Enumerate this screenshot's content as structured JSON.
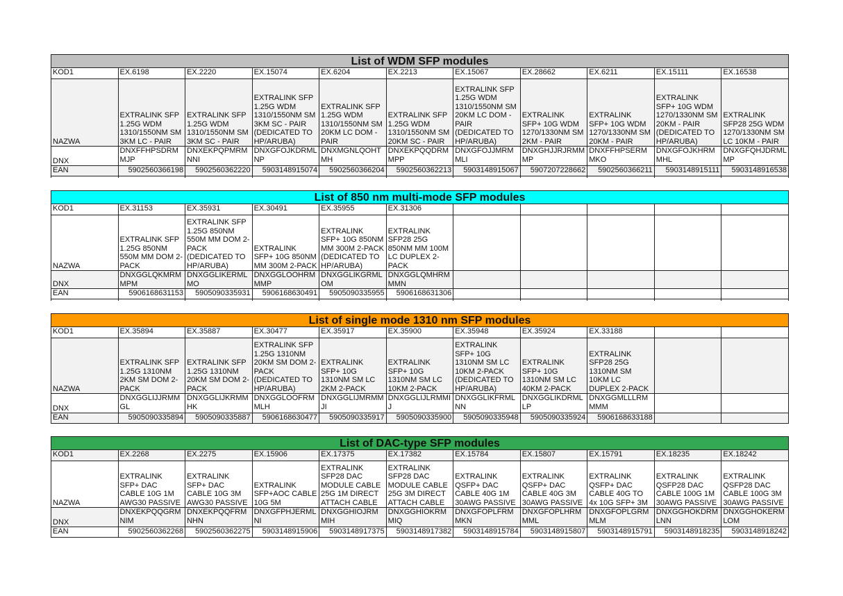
{
  "row_labels": {
    "kod": "KOD1",
    "nazwa": "NAZWA",
    "dnx": "DNX",
    "ean": "EAN"
  },
  "tables": [
    {
      "title": "List of WDM SFP modules",
      "color": "#c0c0c0",
      "kod": [
        "EX.6198",
        "EX.2220",
        "EX.15074",
        "EX.6204",
        "EX.2213",
        "EX.15067",
        "EX.28662",
        "EX.6211",
        "EX.15111",
        "EX.16538"
      ],
      "nazwa": [
        "EXTRALINK SFP 1.25G WDM 1310/1550NM SM 3KM LC - PAIR",
        "EXTRALINK SFP 1.25G WDM 1310/1550NM SM 3KM SC - PAIR",
        "EXTRALINK SFP 1.25G WDM 1310/1550NM SM 3KM SC - PAIR (DEDICATED TO HP/ARUBA)",
        "EXTRALINK SFP 1.25G WDM 1310/1550NM SM 20KM LC DOM - PAIR",
        "EXTRALINK SFP 1.25G WDM 1310/1550NM SM 20KM SC - PAIR",
        "EXTRALINK SFP 1.25G WDM 1310/1550NM SM 20KM LC DOM - PAIR (DEDICATED TO HP/ARUBA)",
        "EXTRALINK SFP+ 10G WDM 1270/1330NM SM 2KM - PAIR",
        "EXTRALINK SFP+ 10G WDM 1270/1330NM SM 20KM - PAIR",
        "EXTRALINK SFP+ 10G WDM 1270/1330NM SM 20KM - PAIR (DEDICATED TO HP/ARUBA)",
        "EXTRALINK SFP28 25G WDM 1270/1330NM SM LC 10KM - PAIR"
      ],
      "dnx": [
        "DNXFFHPSDRMMJP",
        "DNXEKPQPMRMNNI",
        "DNXGFOJKDRMLNP",
        "DNXMGNLQOHTMH",
        "DNXEKPQQDRMMPP",
        "DNXGFOJJMRMMLI",
        "DNXGHJJRJRMMMP",
        "DNXFFHPSERMMKO",
        "DNXGFOJKHRMMHL",
        "DNXGFQHJDRMLMP"
      ],
      "ean": [
        "5902560366198",
        "5902560362220",
        "5903148915074",
        "5902560366204",
        "5902560362213",
        "5903148915067",
        "5907207228662",
        "5902560366211",
        "5903148915111",
        "5903148916538"
      ]
    },
    {
      "title": "List of 850 nm multi-mode SFP modules",
      "color": "#00ffff",
      "kod": [
        "EX.31153",
        "EX.35931",
        "EX.30491",
        "EX.35955",
        "EX.31306",
        "",
        "",
        "",
        "",
        ""
      ],
      "nazwa": [
        "EXTRALINK SFP 1.25G 850NM 550M MM DOM 2-PACK",
        "EXTRALINK SFP 1.25G 850NM 550M MM DOM 2-PACK (DEDICATED TO HP/ARUBA)",
        "EXTRALINK SFP+ 10G 850NM MM 300M 2-PACK",
        "EXTRALINK SFP+ 10G 850NM MM 300M 2-PACK (DEDICATED TO HP/ARUBA)",
        "EXTRALINK SFP28 25G 850NM MM 100M LC DUPLEX 2-PACK",
        "",
        "",
        "",
        "",
        ""
      ],
      "dnx": [
        "DNXGGLQKMRMMPM",
        "DNXGGLIKERMLMO",
        "DNXGGLOOHRMMMP",
        "DNXGGLIKGRMLOM",
        "DNXGGLQMHRMMMN",
        "",
        "",
        "",
        "",
        ""
      ],
      "ean": [
        "5906168631153",
        "5905090335931",
        "5906168630491",
        "5905090335955",
        "5906168631306",
        "",
        "",
        "",
        "",
        ""
      ]
    },
    {
      "title": "List of single mode 1310 nm SFP modules",
      "color": "#ff9900",
      "kod": [
        "EX.35894",
        "EX.35887",
        "EX.30477",
        "EX.35917",
        "EX.35900",
        "EX.35948",
        "EX.35924",
        "EX.33188",
        "",
        ""
      ],
      "nazwa": [
        "EXTRALINK SFP 1.25G 1310NM 2KM SM DOM 2-PACK",
        "EXTRALINK SFP 1.25G 1310NM 20KM SM DOM 2-PACK",
        "EXTRALINK SFP 1.25G 1310NM 20KM SM DOM 2-PACK (DEDICATED TO HP/ARUBA)",
        "EXTRALINK SFP+ 10G 1310NM SM LC 2KM 2-PACK",
        "EXTRALINK SFP+ 10G 1310NM SM LC 10KM 2-PACK",
        "EXTRALINK SFP+ 10G 1310NM SM LC 10KM 2-PACK (DEDICATED TO HP/ARUBA)",
        "EXTRALINK SFP+ 10G 1310NM SM LC 40KM 2-PACK",
        "EXTRALINK SFP28 25G 1310NM SM 10KM LC DUPLEX 2-PACK",
        "",
        ""
      ],
      "dnx": [
        "DNXGGLIJJRMMGL",
        "DNXGGLIJKRMMHK",
        "DNXGGLOOFRMMLH",
        "DNXGGLIJMRMMJI",
        "DNXGGLIJLRMMIJ",
        "DNXGGLIKFRMLNN",
        "DNXGGLIKDRMLLP",
        "DNXGGMLLLRMMMM",
        "",
        ""
      ],
      "ean": [
        "5905090335894",
        "5905090335887",
        "5906168630477",
        "5905090335917",
        "5905090335900",
        "5905090335948",
        "5905090335924",
        "5906168633188",
        "",
        ""
      ]
    },
    {
      "title": "List of DAC-type SFP modules",
      "color": "#33a852",
      "kod": [
        "EX.2268",
        "EX.2275",
        "EX.15906",
        "EX.17375",
        "EX.17382",
        "EX.15784",
        "EX.15807",
        "EX.15791",
        "EX.18235",
        "EX.18242"
      ],
      "nazwa": [
        "EXTRALINK SFP+ DAC CABLE 10G 1M AWG30 PASSIVE",
        "EXTRALINK SFP+ DAC CABLE 10G 3M AWG30 PASSIVE",
        "EXTRALINK SFP+AOC CABLE 10G 5M",
        "EXTRALINK SFP28 DAC MODULE CABLE 25G 1M DIRECT ATTACH CABLE",
        "EXTRALINK SFP28 DAC MODULE CABLE 25G 3M DIRECT ATTACH CABLE",
        "EXTRALINK QSFP+ DAC CABLE 40G 1M 30AWG PASSIVE",
        "EXTRALINK QSFP+ DAC CABLE 40G 3M 30AWG PASSIVE",
        "EXTRALINK QSFP+ DAC CABLE 40G TO 4x 10G SFP+ 3M",
        "EXTRALINK QSFP28 DAC CABLE 100G 1M 30AWG PASSIVE",
        "EXTRALINK QSFP28 DAC CABLE 100G 3M 30AWG PASSIVE"
      ],
      "dnx": [
        "DNXEKPQQGRMNIM",
        "DNXEKPQQFRMNHN",
        "DNXGFPHJERMLNI",
        "DNXGGHIOJRMMIH",
        "DNXGGHIOKRMMIQ",
        "DNXGFOPLFRMMKN",
        "DNXGFOPLHRMMML",
        "DNXGFOPLGRMMLM",
        "DNXGGHOKDRMLNN",
        "DNXGGHOKERMLOM"
      ],
      "ean": [
        "5902560362268",
        "5902560362275",
        "5903148915906",
        "5903148917375",
        "5903148917382",
        "5903148915784",
        "5903148915807",
        "5903148915791",
        "5903148918235",
        "5903148918242"
      ]
    }
  ]
}
